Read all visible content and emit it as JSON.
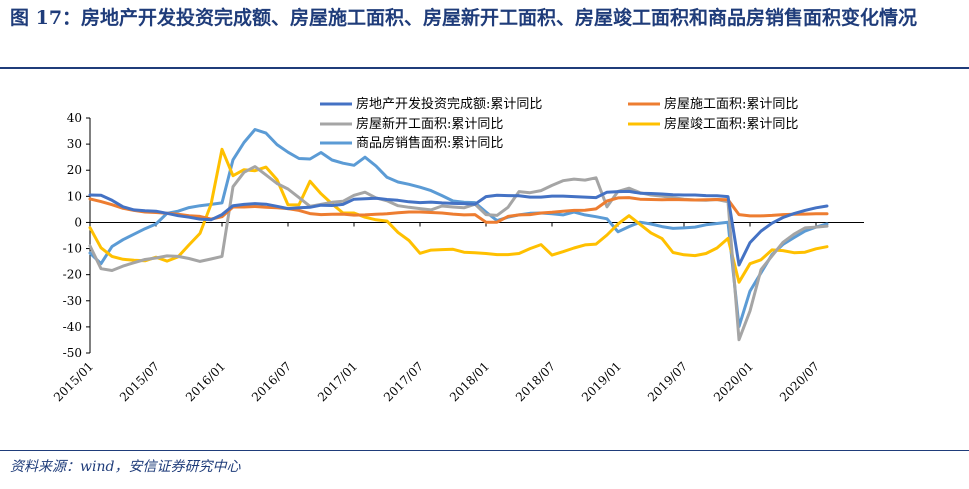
{
  "title": "图 17：房地产开发投资完成额、房屋施工面积、房屋新开工面积、房屋竣工面积和商品房销售面积变化情况",
  "source": "资料来源：wind，安信证券研究中心",
  "chart_data": {
    "type": "line",
    "ylim": [
      -50,
      40
    ],
    "yticks": [
      40,
      30,
      20,
      10,
      0,
      -10,
      -20,
      -30,
      -40,
      -50
    ],
    "xticks": [
      "2015/01",
      "2015/07",
      "2016/01",
      "2016/07",
      "2017/01",
      "2017/07",
      "2018/01",
      "2018/07",
      "2019/01",
      "2019/07",
      "2020/01",
      "2020/07"
    ],
    "grid": false,
    "legend_position": "top",
    "series": [
      {
        "name": "房地产开发投资完成额:累计同比",
        "color": "#4472c4",
        "values": [
          10.5,
          10.4,
          8.5,
          6,
          4.8,
          4.5,
          4.3,
          3.5,
          2.6,
          2,
          1.3,
          1,
          3,
          6.4,
          6.9,
          7.2,
          7,
          6.2,
          5.3,
          5.6,
          5.8,
          6.6,
          6.5,
          6.9,
          8.9,
          9.1,
          9.3,
          8.8,
          8.5,
          7.9,
          7.6,
          7.8,
          7.5,
          7.3,
          7.2,
          7,
          9.9,
          10.4,
          10.3,
          10.2,
          9.7,
          9.7,
          10.1,
          10.1,
          9.9,
          9.7,
          9.5,
          11.6,
          11.8,
          11.9,
          11.2,
          11.1,
          10.9,
          10.6,
          10.5,
          10.5,
          10.3,
          10.2,
          9.9,
          -16.3,
          -7.7,
          -3.3,
          -0.3,
          1.9,
          3.4,
          4.6,
          5.6,
          6.3
        ]
      },
      {
        "name": "房屋施工面积:累计同比",
        "color": "#ed7d31",
        "values": [
          9,
          8,
          6.8,
          5.4,
          4.6,
          4,
          3.8,
          3.5,
          3.1,
          2.6,
          2.3,
          1.3,
          2.2,
          5.9,
          5.9,
          6.1,
          5.8,
          5.6,
          5.3,
          4.6,
          3.4,
          3,
          3.1,
          3.2,
          2.8,
          2.9,
          3.1,
          3.3,
          3.7,
          4,
          4,
          3.8,
          3.6,
          3.2,
          2.9,
          3,
          0.1,
          0.1,
          2.3,
          2.9,
          3,
          3.6,
          3.9,
          4.3,
          4.6,
          4.7,
          5.2,
          8.2,
          9.4,
          9.5,
          8.9,
          8.8,
          8.7,
          8.8,
          8.7,
          8.6,
          8.7,
          8.8,
          8.7,
          3,
          2.5,
          2.5,
          2.7,
          3,
          3.1,
          3.2,
          3.3,
          3.3
        ]
      },
      {
        "name": "房屋新开工面积:累计同比",
        "color": "#a5a5a5",
        "values": [
          -9,
          -17.7,
          -18.4,
          -16.7,
          -15.4,
          -14.2,
          -13.6,
          -12.8,
          -13,
          -13.8,
          -14.9,
          -14,
          -13,
          13.7,
          19.2,
          21.4,
          18.2,
          14.9,
          12.8,
          9.5,
          6.2,
          6.9,
          7.7,
          8.1,
          10.4,
          11.6,
          9.4,
          8.3,
          6.4,
          5.8,
          5.3,
          4.8,
          6.3,
          5.9,
          5.6,
          7,
          3,
          2.7,
          5.8,
          11.8,
          11.4,
          12.2,
          14.2,
          16,
          16.6,
          16.2,
          17.1,
          6,
          11.9,
          13.1,
          11.4,
          10.5,
          10.1,
          9.5,
          8.9,
          8.6,
          8.5,
          8.8,
          7.9,
          -44.9,
          -33.9,
          -18.1,
          -12.8,
          -7.6,
          -4.5,
          -2.1,
          -1.8,
          -1.4
        ]
      },
      {
        "name": "房屋竣工面积:累计同比",
        "color": "#ffc000",
        "values": [
          -2,
          -9.7,
          -13,
          -14.1,
          -14.5,
          -14.7,
          -13.3,
          -14.8,
          -13.2,
          -8.6,
          -4.2,
          6.9,
          28,
          17.9,
          20.2,
          19.8,
          21.2,
          16.4,
          6.7,
          6.8,
          15.8,
          11,
          7.1,
          3.6,
          3.6,
          2,
          1,
          0.5,
          -3.8,
          -6.9,
          -11.8,
          -10.6,
          -10.4,
          -10.3,
          -11.4,
          -11.6,
          -11.9,
          -12.3,
          -12.3,
          -11.9,
          -10,
          -8.5,
          -12.5,
          -11.2,
          -9.8,
          -8.6,
          -8.3,
          -4.8,
          -0.6,
          2.6,
          -0.7,
          -4,
          -6.2,
          -11.5,
          -12.4,
          -12.7,
          -11.9,
          -9.8,
          -6.1,
          -22.9,
          -15.8,
          -14.3,
          -10.5,
          -10.8,
          -11.6,
          -11.4,
          -10.1,
          -9.3
        ]
      },
      {
        "name": "商品房销售面积:累计同比",
        "color": "#5b9bd5",
        "values": [
          -11.7,
          -15.8,
          -9.2,
          -6.6,
          -4.5,
          -2.4,
          -0.6,
          3.5,
          4.3,
          5.7,
          6.4,
          6.9,
          7.5,
          24,
          30.6,
          35.6,
          34.2,
          29.8,
          26.9,
          24.5,
          24.3,
          26.8,
          23.9,
          22.7,
          21.9,
          25,
          21.6,
          17.3,
          15.5,
          14.6,
          13.5,
          12.2,
          10.3,
          8.2,
          7.7,
          7.6,
          4,
          0.7,
          2,
          2.9,
          3.5,
          3.6,
          3.3,
          2.9,
          4,
          2.9,
          2.2,
          1.4,
          -3.6,
          -1.6,
          0.1,
          -0.6,
          -1.6,
          -2.3,
          -2.1,
          -1.8,
          -0.9,
          -0.4,
          0.1,
          -39.9,
          -26.3,
          -19.3,
          -12.3,
          -8.4,
          -5.8,
          -3.3,
          -1.8,
          -0.6
        ]
      }
    ]
  }
}
